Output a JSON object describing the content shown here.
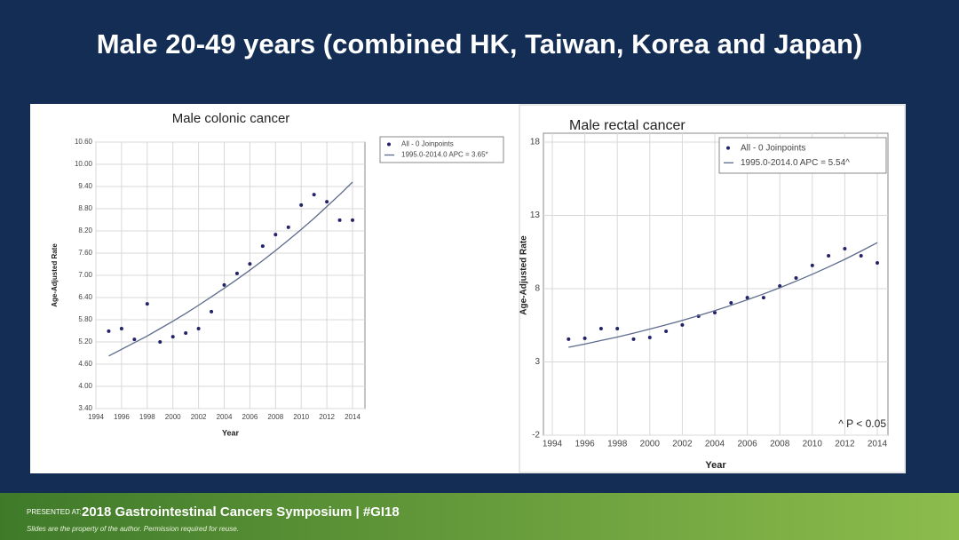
{
  "title": "Male 20-49 years (combined HK, Taiwan, Korea and Japan)",
  "footer": {
    "presented": "PRESENTED AT:",
    "event": "2018 Gastrointestinal Cancers Symposium | #GI18",
    "notice": "Slides are the property of the author. Permission required for reuse."
  },
  "chart_data": [
    {
      "type": "scatter",
      "title": "Male colonic cancer",
      "x_label": "Year",
      "y_label": "Age-Adjusted Rate",
      "x": [
        1995,
        1996,
        1997,
        1998,
        1999,
        2000,
        2001,
        2002,
        2003,
        2004,
        2005,
        2006,
        2007,
        2008,
        2009,
        2010,
        2011,
        2012,
        2013,
        2014
      ],
      "series": [
        {
          "name": "All - 0 Joinpoints",
          "kind": "markers",
          "color": "#23236a",
          "values": [
            5.49,
            5.56,
            5.27,
            6.23,
            5.2,
            5.34,
            5.44,
            5.56,
            6.02,
            6.74,
            7.05,
            7.31,
            7.79,
            8.1,
            8.3,
            8.9,
            9.18,
            8.99,
            8.49,
            8.49
          ]
        },
        {
          "name": "1995.0-2014.0 APC = 3.65*",
          "kind": "line",
          "color": "#5d6b8c",
          "values": [
            4.82,
            5.0,
            5.18,
            5.36,
            5.56,
            5.76,
            5.97,
            6.19,
            6.42,
            6.65,
            6.89,
            7.14,
            7.4,
            7.67,
            7.95,
            8.24,
            8.54,
            8.86,
            9.18,
            9.52
          ]
        }
      ],
      "xlim": [
        1994,
        2014
      ],
      "xticks": [
        1994,
        1996,
        1998,
        2000,
        2002,
        2004,
        2006,
        2008,
        2010,
        2012,
        2014
      ],
      "ylim": [
        3.4,
        10.6
      ],
      "yticks": [
        {
          "value": 3.4,
          "label": "3.40"
        },
        {
          "value": 4,
          "label": "4.00"
        },
        {
          "value": 4.6,
          "label": "4.60"
        },
        {
          "value": 5.2,
          "label": "5.20"
        },
        {
          "value": 5.8,
          "label": "5.80"
        },
        {
          "value": 6.4,
          "label": "6.40"
        },
        {
          "value": 7,
          "label": "7.00"
        },
        {
          "value": 7.6,
          "label": "7.60"
        },
        {
          "value": 8.2,
          "label": "8.20"
        },
        {
          "value": 8.8,
          "label": "8.80"
        },
        {
          "value": 9.4,
          "label": "9.40"
        },
        {
          "value": 10,
          "label": "10.00"
        },
        {
          "value": 10.6,
          "label": "10.60"
        }
      ],
      "grid": true,
      "legend": "outside right"
    },
    {
      "type": "scatter",
      "title": "Male rectal cancer",
      "x_label": "Year",
      "y_label": "Age-Adjusted Rate",
      "annotation": "^ P < 0.05",
      "x": [
        1995,
        1996,
        1997,
        1998,
        1999,
        2000,
        2001,
        2002,
        2003,
        2004,
        2005,
        2006,
        2007,
        2008,
        2009,
        2010,
        2011,
        2012,
        2013,
        2014
      ],
      "series": [
        {
          "name": "All - 0 Joinpoints",
          "kind": "markers",
          "color": "#23236a",
          "values": [
            4.55,
            4.61,
            5.27,
            5.27,
            4.55,
            4.67,
            5.09,
            5.52,
            6.12,
            6.36,
            7.03,
            7.39,
            7.39,
            8.18,
            8.73,
            9.58,
            10.24,
            10.73,
            10.24,
            9.76
          ]
        },
        {
          "name": "1995.0-2014.0 APC = 5.54^",
          "kind": "line",
          "color": "#5d6b8c",
          "values": [
            4.0,
            4.22,
            4.46,
            4.7,
            4.96,
            5.24,
            5.53,
            5.83,
            6.16,
            6.5,
            6.86,
            7.24,
            7.64,
            8.06,
            8.51,
            8.98,
            9.48,
            10.0,
            10.56,
            11.14
          ]
        }
      ],
      "xlim": [
        1994,
        2014
      ],
      "xticks": [
        1994,
        1996,
        1998,
        2000,
        2002,
        2004,
        2006,
        2008,
        2010,
        2012,
        2014
      ],
      "ylim": [
        -2,
        18
      ],
      "yticks": [
        -2,
        3,
        8,
        13,
        18
      ],
      "grid": true,
      "legend": "upper right"
    }
  ]
}
